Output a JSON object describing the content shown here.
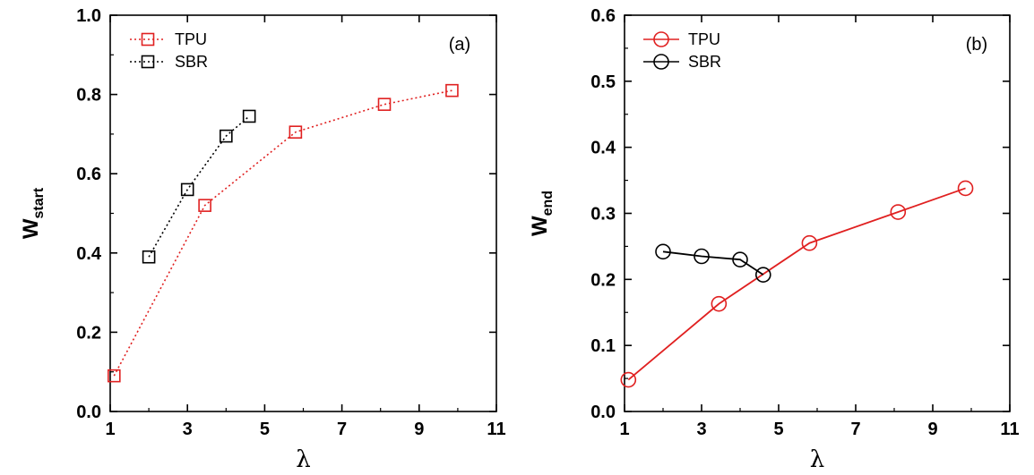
{
  "chart_data": [
    {
      "type": "line",
      "panel_label": "(a)",
      "xlabel": "λ",
      "ylabel": {
        "main": "W",
        "sub": "start"
      },
      "xlim": [
        1,
        11
      ],
      "ylim": [
        0,
        1
      ],
      "x_ticks": [
        "1",
        "3",
        "5",
        "7",
        "9",
        "11"
      ],
      "y_ticks": [
        "0.0",
        "0.2",
        "0.4",
        "0.6",
        "0.8",
        "1.0"
      ],
      "grid": false,
      "legend_placement": "top-left",
      "series": [
        {
          "name": "TPU",
          "marker": "square",
          "line_style": "dotted",
          "color": "#e02020",
          "x": [
            1.1,
            3.45,
            5.8,
            8.1,
            9.85
          ],
          "y": [
            0.09,
            0.52,
            0.705,
            0.775,
            0.81
          ]
        },
        {
          "name": "SBR",
          "marker": "square",
          "line_style": "dotted",
          "color": "#000000",
          "x": [
            2.0,
            3.0,
            4.0,
            4.6
          ],
          "y": [
            0.39,
            0.56,
            0.695,
            0.745
          ]
        }
      ]
    },
    {
      "type": "line",
      "panel_label": "(b)",
      "xlabel": "λ",
      "ylabel": {
        "main": "W",
        "sub": "end"
      },
      "xlim": [
        1,
        11
      ],
      "ylim": [
        0,
        0.6
      ],
      "x_ticks": [
        "1",
        "3",
        "5",
        "7",
        "9",
        "11"
      ],
      "y_ticks": [
        "0.0",
        "0.1",
        "0.2",
        "0.3",
        "0.4",
        "0.5",
        "0.6"
      ],
      "grid": false,
      "legend_placement": "top-left",
      "series": [
        {
          "name": "TPU",
          "marker": "circle",
          "line_style": "solid",
          "color": "#e02020",
          "x": [
            1.1,
            3.45,
            5.8,
            8.1,
            9.85
          ],
          "y": [
            0.048,
            0.163,
            0.255,
            0.302,
            0.338
          ]
        },
        {
          "name": "SBR",
          "marker": "circle",
          "line_style": "solid",
          "color": "#000000",
          "x": [
            2.0,
            3.0,
            4.0,
            4.6
          ],
          "y": [
            0.242,
            0.235,
            0.23,
            0.207
          ]
        }
      ]
    }
  ]
}
